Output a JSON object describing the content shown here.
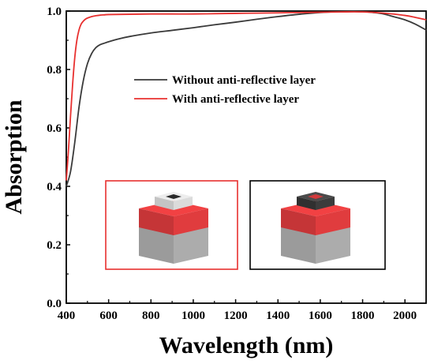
{
  "chart_data": {
    "type": "line",
    "xlabel": "Wavelength (nm)",
    "ylabel": "Absorption",
    "xlim": [
      400,
      2100
    ],
    "ylim": [
      0.0,
      1.0
    ],
    "xticks": [
      400,
      600,
      800,
      1000,
      1200,
      1400,
      1600,
      1800,
      2000
    ],
    "yticks": [
      0.0,
      0.2,
      0.4,
      0.6,
      0.8,
      1.0
    ],
    "xtick_labels": [
      "400",
      "600",
      "800",
      "1000",
      "1200",
      "1400",
      "1600",
      "1800",
      "2000"
    ],
    "ytick_labels": [
      "0.0",
      "0.2",
      "0.4",
      "0.6",
      "0.8",
      "1.0"
    ],
    "grid": false,
    "legend_position": "center-right",
    "series": [
      {
        "name": "Without anti-reflective layer",
        "color": "#3a3a3a",
        "x": [
          400,
          420,
          440,
          460,
          480,
          500,
          520,
          540,
          560,
          580,
          600,
          650,
          700,
          800,
          900,
          1000,
          1100,
          1200,
          1300,
          1400,
          1500,
          1600,
          1700,
          1800,
          1850,
          1900,
          1950,
          2000,
          2050,
          2100
        ],
        "y": [
          0.4,
          0.45,
          0.55,
          0.67,
          0.76,
          0.82,
          0.855,
          0.875,
          0.885,
          0.89,
          0.895,
          0.905,
          0.913,
          0.925,
          0.934,
          0.943,
          0.953,
          0.962,
          0.972,
          0.981,
          0.989,
          0.995,
          0.998,
          0.998,
          0.995,
          0.99,
          0.98,
          0.97,
          0.955,
          0.935
        ]
      },
      {
        "name": "With anti-reflective layer",
        "color": "#e8302f",
        "x": [
          400,
          410,
          420,
          430,
          440,
          450,
          460,
          470,
          480,
          490,
          500,
          520,
          540,
          560,
          580,
          600,
          700,
          800,
          900,
          1000,
          1100,
          1200,
          1300,
          1400,
          1500,
          1600,
          1700,
          1800,
          1900,
          2000,
          2050,
          2100
        ],
        "y": [
          0.42,
          0.52,
          0.64,
          0.75,
          0.84,
          0.9,
          0.935,
          0.955,
          0.965,
          0.972,
          0.976,
          0.981,
          0.984,
          0.986,
          0.987,
          0.988,
          0.989,
          0.99,
          0.99,
          0.99,
          0.991,
          0.992,
          0.993,
          0.994,
          0.995,
          0.996,
          0.997,
          0.997,
          0.993,
          0.985,
          0.978,
          0.97
        ]
      }
    ]
  },
  "legend": {
    "items": [
      "Without anti-reflective layer",
      "With anti-reflective layer"
    ]
  },
  "insets": {
    "left_border_color": "#e8302f",
    "right_border_color": "#000000",
    "left_ring_color": "#e6e6e6",
    "right_ring_color": "#3c3c3c",
    "top_layer_color": "#e03c3e",
    "base_layer_color": "#a9a9a9"
  }
}
